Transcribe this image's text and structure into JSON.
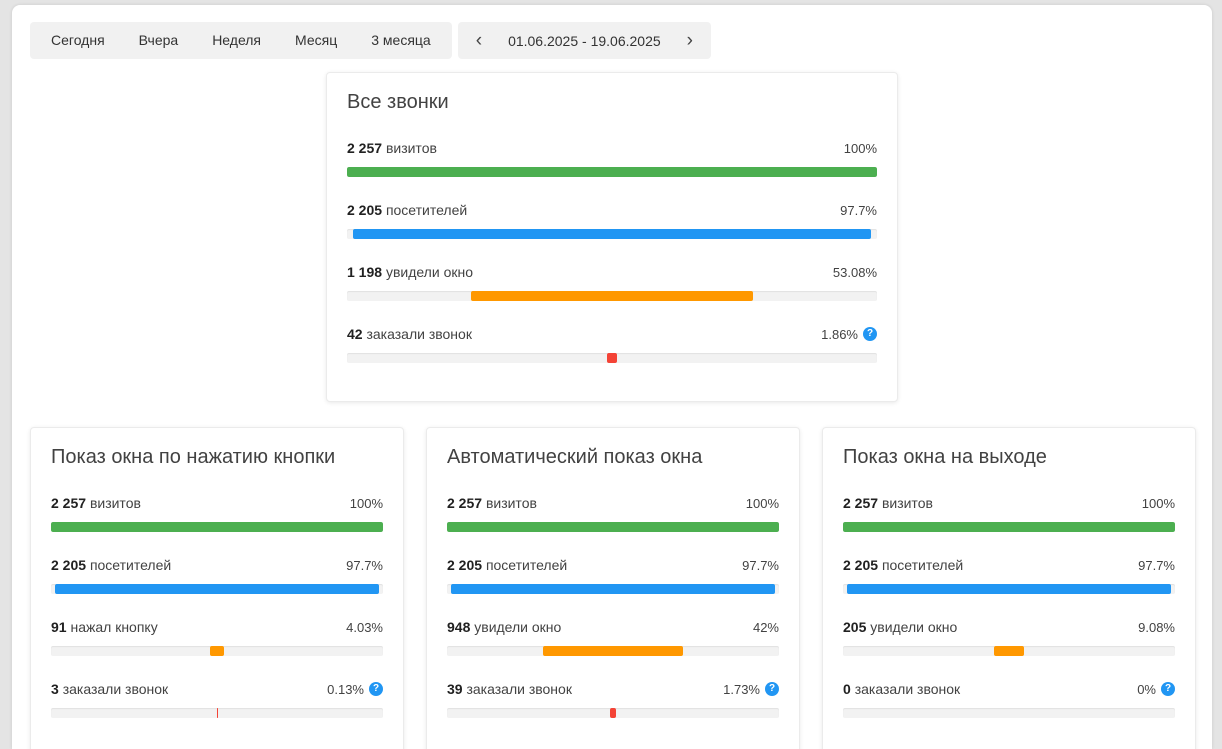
{
  "filters": {
    "tabs": [
      "Сегодня",
      "Вчера",
      "Неделя",
      "Месяц",
      "3 месяца"
    ],
    "prev_icon": "‹",
    "next_icon": "›",
    "date_range": "01.06.2025 - 19.06.2025"
  },
  "icons": {
    "help": "?"
  },
  "colors": {
    "green": "#4caf50",
    "blue": "#2196f3",
    "orange": "#ff9800",
    "red": "#f44336",
    "help_bg": "#2196f3"
  },
  "cards": [
    {
      "title": "Все звонки",
      "rows": [
        {
          "value": "2 257",
          "label": "визитов",
          "pct": "100%",
          "color": "#4caf50"
        },
        {
          "value": "2 205",
          "label": "посетителей",
          "pct": "97.7%",
          "color": "#2196f3"
        },
        {
          "value": "1 198",
          "label": "увидели окно",
          "pct": "53.08%",
          "color": "#ff9800"
        },
        {
          "value": "42",
          "label": "заказали звонок",
          "pct": "1.86%",
          "color": "#f44336"
        }
      ]
    },
    {
      "title": "Показ окна по нажатию кнопки",
      "rows": [
        {
          "value": "2 257",
          "label": "визитов",
          "pct": "100%",
          "color": "#4caf50"
        },
        {
          "value": "2 205",
          "label": "посетителей",
          "pct": "97.7%",
          "color": "#2196f3"
        },
        {
          "value": "91",
          "label": "нажал кнопку",
          "pct": "4.03%",
          "color": "#ff9800"
        },
        {
          "value": "3",
          "label": "заказали звонок",
          "pct": "0.13%",
          "color": "#f44336"
        }
      ]
    },
    {
      "title": "Автоматический показ окна",
      "rows": [
        {
          "value": "2 257",
          "label": "визитов",
          "pct": "100%",
          "color": "#4caf50"
        },
        {
          "value": "2 205",
          "label": "посетителей",
          "pct": "97.7%",
          "color": "#2196f3"
        },
        {
          "value": "948",
          "label": "увидели окно",
          "pct": "42%",
          "color": "#ff9800"
        },
        {
          "value": "39",
          "label": "заказали звонок",
          "pct": "1.73%",
          "color": "#f44336"
        }
      ]
    },
    {
      "title": "Показ окна на выходе",
      "rows": [
        {
          "value": "2 257",
          "label": "визитов",
          "pct": "100%",
          "color": "#4caf50"
        },
        {
          "value": "2 205",
          "label": "посетителей",
          "pct": "97.7%",
          "color": "#2196f3"
        },
        {
          "value": "205",
          "label": "увидели окно",
          "pct": "9.08%",
          "color": "#ff9800"
        },
        {
          "value": "0",
          "label": "заказали звонок",
          "pct": "0%",
          "color": "#f44336"
        }
      ]
    }
  ]
}
